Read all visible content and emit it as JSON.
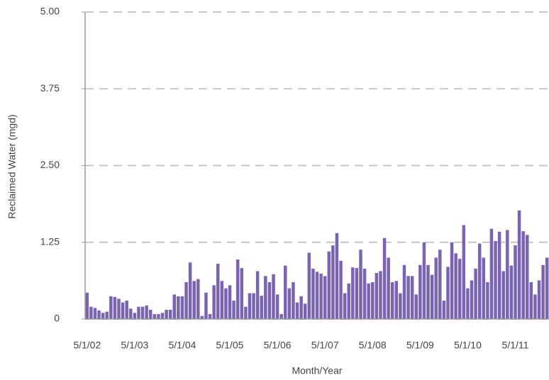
{
  "chart_data": {
    "type": "bar",
    "y_label": "Reclaimed Water (mgd)",
    "x_label": "Month/Year",
    "categories": [
      "5/1/02",
      null,
      null,
      null,
      null,
      null,
      null,
      null,
      null,
      null,
      null,
      null,
      "5/1/03",
      null,
      null,
      null,
      null,
      null,
      null,
      null,
      null,
      null,
      null,
      null,
      "5/1/04",
      null,
      null,
      null,
      null,
      null,
      null,
      null,
      null,
      null,
      null,
      null,
      "5/1/05",
      null,
      null,
      null,
      null,
      null,
      null,
      null,
      null,
      null,
      null,
      null,
      "5/1/06",
      null,
      null,
      null,
      null,
      null,
      null,
      null,
      null,
      null,
      null,
      null,
      "5/1/07",
      null,
      null,
      null,
      null,
      null,
      null,
      null,
      null,
      null,
      null,
      null,
      "5/1/08",
      null,
      null,
      null,
      null,
      null,
      null,
      null,
      null,
      null,
      null,
      null,
      "5/1/09",
      null,
      null,
      null,
      null,
      null,
      null,
      null,
      null,
      null,
      null,
      null,
      "5/1/10",
      null,
      null,
      null,
      null,
      null,
      null,
      null,
      null,
      null,
      null,
      null,
      "5/1/11",
      null,
      null,
      null,
      null,
      null,
      null,
      null,
      null
    ],
    "values": [
      0.43,
      0.2,
      0.18,
      0.14,
      0.1,
      0.12,
      0.37,
      0.36,
      0.33,
      0.27,
      0.3,
      0.17,
      0.1,
      0.2,
      0.2,
      0.22,
      0.15,
      0.08,
      0.08,
      0.1,
      0.15,
      0.15,
      0.4,
      0.37,
      0.37,
      0.6,
      0.92,
      0.62,
      0.65,
      0.05,
      0.43,
      0.08,
      0.55,
      0.9,
      0.62,
      0.5,
      0.55,
      0.3,
      0.97,
      0.83,
      0.2,
      0.42,
      0.42,
      0.78,
      0.38,
      0.7,
      0.6,
      0.73,
      0.4,
      0.08,
      0.87,
      0.5,
      0.6,
      0.27,
      0.37,
      0.25,
      1.08,
      0.82,
      0.77,
      0.74,
      0.7,
      1.1,
      1.2,
      1.4,
      0.95,
      0.42,
      0.58,
      0.84,
      0.83,
      1.13,
      0.82,
      0.58,
      0.6,
      0.75,
      0.78,
      1.32,
      1.0,
      0.6,
      0.62,
      0.42,
      0.88,
      0.7,
      0.7,
      0.4,
      0.88,
      1.25,
      0.88,
      0.72,
      1.0,
      1.13,
      0.3,
      0.85,
      1.25,
      1.07,
      0.98,
      1.53,
      0.5,
      0.63,
      0.82,
      1.23,
      1.0,
      0.6,
      1.47,
      1.27,
      1.42,
      0.78,
      1.45,
      0.87,
      1.2,
      1.77,
      1.43,
      1.37,
      0.6,
      0.4,
      0.63,
      0.88,
      1.0
    ],
    "color": "#7a62b6",
    "ylim": [
      0,
      5
    ],
    "yticks": [
      0,
      {
        "value": 1.25,
        "label": "1.25"
      },
      {
        "value": 2.5,
        "label": "2.50"
      },
      {
        "value": 3.75,
        "label": "3.75"
      },
      {
        "value": 5,
        "label": "5.00"
      }
    ],
    "grid": true
  }
}
